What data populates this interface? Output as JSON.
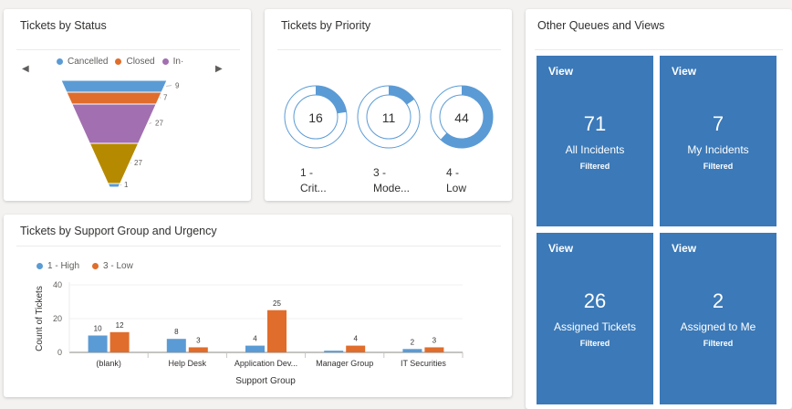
{
  "status_card": {
    "title": "Tickets by Status",
    "nav_prev": "◀",
    "nav_next": "▶",
    "legend": [
      {
        "label": "Cancelled",
        "color": "#5b9bd5"
      },
      {
        "label": "Closed",
        "color": "#e06d2b"
      },
      {
        "label": "In·",
        "color": "#a26fb0"
      }
    ]
  },
  "priority_card": {
    "title": "Tickets by Priority",
    "items": [
      {
        "value": "16",
        "label_line1": "1 -",
        "label_line2": "Crit..."
      },
      {
        "value": "11",
        "label_line1": "3 -",
        "label_line2": "Mode..."
      },
      {
        "value": "44",
        "label_line1": "4 -",
        "label_line2": "Low"
      }
    ]
  },
  "queues_card": {
    "title": "Other Queues and Views",
    "tiles": [
      {
        "view": "View",
        "count": "71",
        "name": "All Incidents",
        "sub": "Filtered"
      },
      {
        "view": "View",
        "count": "7",
        "name": "My Incidents",
        "sub": "Filtered"
      },
      {
        "view": "View",
        "count": "26",
        "name": "Assigned Tickets",
        "sub": "Filtered"
      },
      {
        "view": "View",
        "count": "2",
        "name": "Assigned to Me",
        "sub": "Filtered"
      }
    ]
  },
  "support_card": {
    "title": "Tickets by Support Group and Urgency"
  },
  "chart_data": [
    {
      "type": "funnel",
      "title": "Tickets by Status",
      "values": [
        9,
        7,
        27,
        27,
        1
      ],
      "colors": [
        "#5b9bd5",
        "#e06d2b",
        "#a26fb0",
        "#b68a00",
        "#5b9bd5"
      ]
    },
    {
      "type": "pie",
      "title": "Tickets by Priority",
      "categories": [
        "1 - Crit...",
        "3 - Mode...",
        "4 - Low"
      ],
      "values": [
        16,
        11,
        44
      ],
      "colors": [
        "#5b9bd5",
        "#5b9bd5",
        "#5b9bd5"
      ]
    },
    {
      "type": "bar",
      "title": "Tickets by Support Group and Urgency",
      "xlabel": "Support Group",
      "ylabel": "Count of Tickets",
      "ylim": [
        0,
        40
      ],
      "yticks": [
        0,
        20,
        40
      ],
      "categories": [
        "(blank)",
        "Help Desk",
        "Application Dev...",
        "Manager Group",
        "IT Securities"
      ],
      "series": [
        {
          "name": "1 - High",
          "color": "#5b9bd5",
          "values": [
            10,
            8,
            4,
            1,
            2
          ]
        },
        {
          "name": "3 - Low",
          "color": "#e06d2b",
          "values": [
            12,
            3,
            25,
            4,
            3
          ]
        }
      ],
      "data_labels": [
        [
          "10",
          "8",
          "4",
          "",
          "2"
        ],
        [
          "12",
          "3",
          "25",
          "4",
          "3"
        ]
      ],
      "grid": true,
      "legend": "top-left"
    }
  ]
}
